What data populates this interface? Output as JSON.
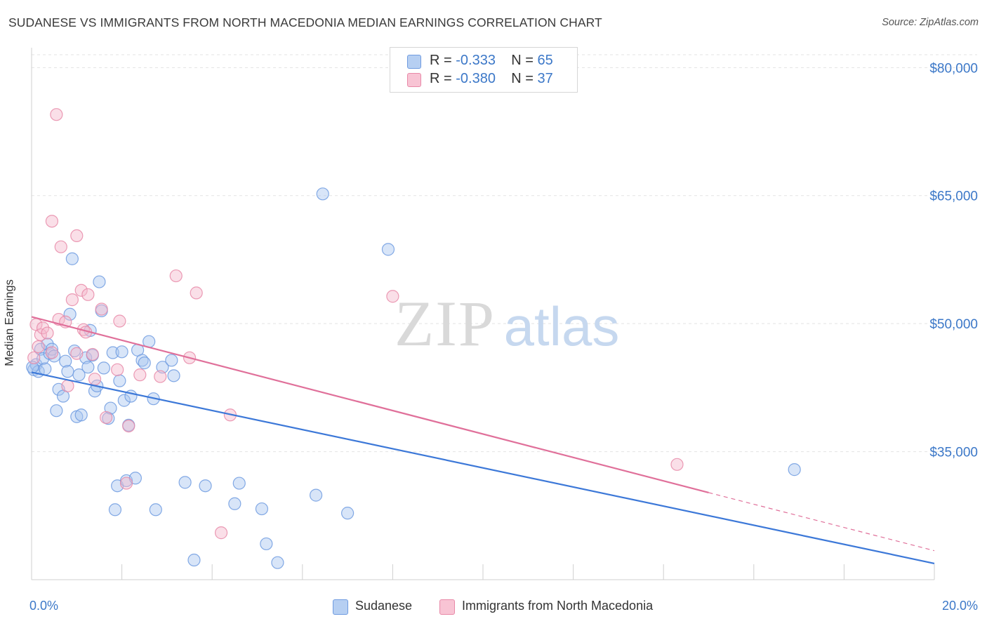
{
  "chart_data": {
    "type": "scatter",
    "title": "SUDANESE VS IMMIGRANTS FROM NORTH MACEDONIA MEDIAN EARNINGS CORRELATION CHART",
    "source": "Source: ZipAtlas.com",
    "xlabel": "",
    "ylabel": "Median Earnings",
    "xlim": [
      0,
      20
    ],
    "ylim": [
      20000,
      82000
    ],
    "x_tick_labels": [
      "0.0%",
      "20.0%"
    ],
    "y_ticks": [
      35000,
      50000,
      65000,
      80000
    ],
    "y_tick_labels": [
      "$35,000",
      "$50,000",
      "$65,000",
      "$80,000"
    ],
    "watermark": {
      "part1": "ZIP",
      "part2": "atlas"
    },
    "colors": {
      "sudanese": "#3c78d8",
      "north_macedonia": "#e0709a",
      "sudanese_fill": "#a9c6ef",
      "north_macedonia_fill": "#f5b8cb"
    },
    "legend": {
      "r_label": "R =",
      "n_label": "N =",
      "sudanese_r": "-0.333",
      "sudanese_n": "65",
      "north_macedonia_r": "-0.380",
      "north_macedonia_n": "37"
    },
    "series": [
      {
        "name": "Sudanese",
        "trend": {
          "x0": 0,
          "y0": 44300,
          "x1": 20,
          "y1": 21900
        },
        "points": [
          [
            0.05,
            44600
          ],
          [
            0.1,
            45200
          ],
          [
            0.15,
            44400
          ],
          [
            0.2,
            47000
          ],
          [
            0.25,
            45900
          ],
          [
            0.3,
            44700
          ],
          [
            0.35,
            47600
          ],
          [
            0.4,
            46500
          ],
          [
            0.45,
            47000
          ],
          [
            0.5,
            46200
          ],
          [
            0.55,
            39800
          ],
          [
            0.6,
            42300
          ],
          [
            0.7,
            41500
          ],
          [
            0.75,
            45600
          ],
          [
            0.8,
            44400
          ],
          [
            0.85,
            51100
          ],
          [
            0.9,
            57600
          ],
          [
            0.95,
            46800
          ],
          [
            1.0,
            39100
          ],
          [
            1.05,
            44000
          ],
          [
            1.1,
            39300
          ],
          [
            1.2,
            46000
          ],
          [
            1.25,
            44900
          ],
          [
            1.3,
            49200
          ],
          [
            1.35,
            46300
          ],
          [
            1.4,
            42100
          ],
          [
            1.45,
            42700
          ],
          [
            1.5,
            54900
          ],
          [
            1.55,
            51500
          ],
          [
            1.6,
            44800
          ],
          [
            1.7,
            38900
          ],
          [
            1.75,
            40100
          ],
          [
            1.8,
            46600
          ],
          [
            1.85,
            28200
          ],
          [
            1.9,
            31000
          ],
          [
            1.95,
            43300
          ],
          [
            2.0,
            46700
          ],
          [
            2.05,
            41000
          ],
          [
            2.1,
            31600
          ],
          [
            2.15,
            38100
          ],
          [
            2.2,
            41500
          ],
          [
            2.3,
            31900
          ],
          [
            2.35,
            46900
          ],
          [
            2.45,
            45700
          ],
          [
            2.5,
            45400
          ],
          [
            2.6,
            47900
          ],
          [
            2.7,
            41200
          ],
          [
            2.75,
            28200
          ],
          [
            2.9,
            44900
          ],
          [
            3.1,
            45700
          ],
          [
            3.15,
            43900
          ],
          [
            3.4,
            31400
          ],
          [
            3.6,
            22300
          ],
          [
            3.85,
            31000
          ],
          [
            4.5,
            28900
          ],
          [
            4.6,
            31300
          ],
          [
            5.1,
            28300
          ],
          [
            5.2,
            24200
          ],
          [
            5.45,
            22000
          ],
          [
            6.3,
            29900
          ],
          [
            6.45,
            65200
          ],
          [
            7.0,
            27800
          ],
          [
            7.9,
            58700
          ],
          [
            16.9,
            32900
          ],
          [
            0.02,
            44900
          ]
        ]
      },
      {
        "name": "Immigrants from North Macedonia",
        "trend": {
          "x0": 0,
          "y0": 50800,
          "x1": 15,
          "y1": 30200,
          "dash_x1": 20,
          "dash_y1": 23400
        },
        "points": [
          [
            0.05,
            46000
          ],
          [
            0.1,
            49900
          ],
          [
            0.15,
            47300
          ],
          [
            0.2,
            48700
          ],
          [
            0.25,
            49500
          ],
          [
            0.35,
            48900
          ],
          [
            0.45,
            46600
          ],
          [
            0.55,
            74500
          ],
          [
            0.45,
            62000
          ],
          [
            0.6,
            50500
          ],
          [
            0.65,
            59000
          ],
          [
            0.75,
            50200
          ],
          [
            0.8,
            42700
          ],
          [
            0.9,
            52800
          ],
          [
            1.0,
            46500
          ],
          [
            1.0,
            60300
          ],
          [
            1.1,
            53900
          ],
          [
            1.15,
            49300
          ],
          [
            1.2,
            49000
          ],
          [
            1.25,
            53400
          ],
          [
            1.35,
            46400
          ],
          [
            1.4,
            43500
          ],
          [
            1.55,
            51700
          ],
          [
            1.65,
            39000
          ],
          [
            1.9,
            44600
          ],
          [
            1.95,
            50300
          ],
          [
            2.1,
            31300
          ],
          [
            2.15,
            38000
          ],
          [
            2.4,
            44000
          ],
          [
            2.85,
            43800
          ],
          [
            3.2,
            55600
          ],
          [
            3.5,
            46000
          ],
          [
            3.65,
            53600
          ],
          [
            4.2,
            25500
          ],
          [
            4.4,
            39300
          ],
          [
            8.0,
            53200
          ],
          [
            14.3,
            33500
          ]
        ]
      }
    ]
  },
  "bottom_legend": {
    "sudanese": "Sudanese",
    "north_macedonia": "Immigrants from North Macedonia"
  }
}
